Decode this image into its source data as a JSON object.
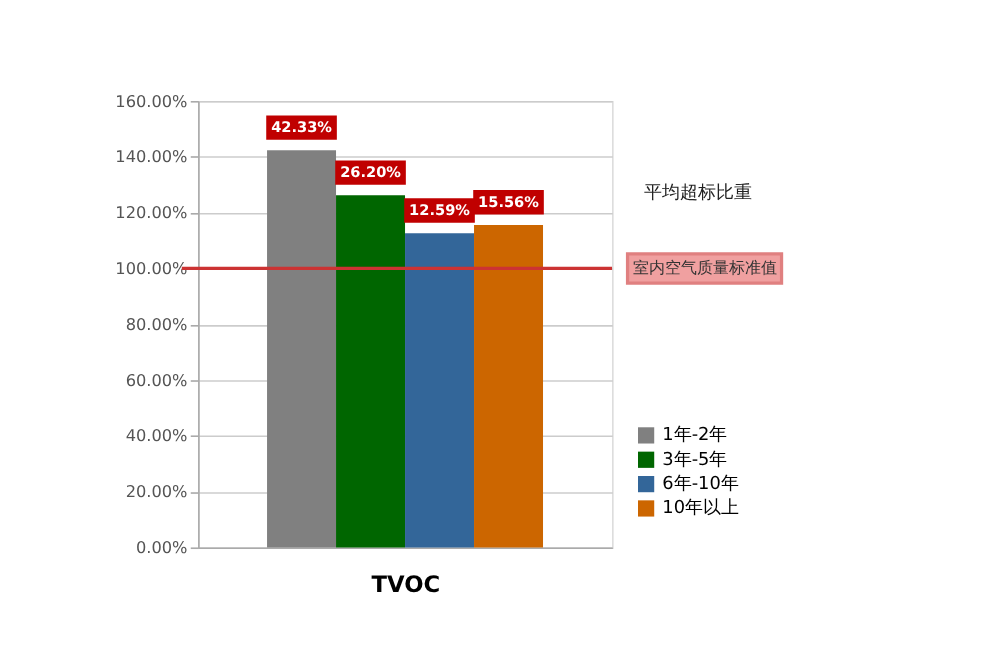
{
  "chart_data": {
    "type": "bar",
    "categories": [
      null,
      null,
      null,
      null
    ],
    "xlabel": "TVOC",
    "series": [
      {
        "name": "1年-2年",
        "color": "#808080",
        "values": [
          142.33,
          null,
          null,
          null
        ]
      },
      {
        "name": "3年-5年",
        "color": "#006600",
        "values": [
          null,
          126.2,
          null,
          null
        ]
      },
      {
        "name": "6年-10年",
        "color": "#336699",
        "values": [
          null,
          null,
          112.59,
          null
        ]
      },
      {
        "name": "10年以上",
        "color": "#cc6600",
        "values": [
          null,
          null,
          null,
          115.56
        ]
      }
    ],
    "ylim": [
      0,
      160
    ],
    "yticks": [
      {
        "value": 0,
        "label": "0.00%"
      },
      {
        "value": 20,
        "label": "20.00%"
      },
      {
        "value": 40,
        "label": "40.00%"
      },
      {
        "value": 60,
        "label": "60.00%"
      },
      {
        "value": 80,
        "label": "80.00%"
      },
      {
        "value": 100,
        "label": "100.00%"
      },
      {
        "value": 120,
        "label": "120.00%"
      },
      {
        "value": 140,
        "label": "140.00%"
      },
      {
        "value": 160,
        "label": "160.00%"
      }
    ],
    "ref_lines": [
      {
        "axis": "y",
        "value": 100,
        "label": "室内空气质量标准值",
        "color": "#cc3333"
      }
    ],
    "annotations": [
      "平均超标比重",
      "42.33%",
      "26.20%",
      "12.59%",
      "15.56%"
    ],
    "grid": "y",
    "legend": "bottom right"
  }
}
